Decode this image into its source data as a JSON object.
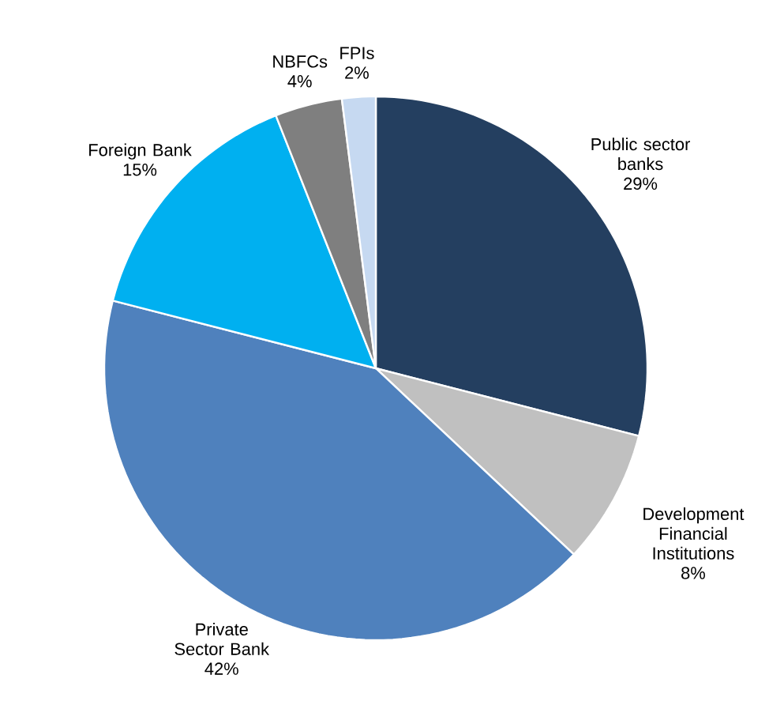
{
  "chart_data": {
    "type": "pie",
    "categories": [
      "Public sector banks",
      "Development Financial Institutions",
      "Private Sector Bank",
      "Foreign Bank",
      "NBFCs",
      "FPIs"
    ],
    "values": [
      29,
      8,
      42,
      15,
      4,
      2
    ],
    "value_labels": [
      "29%",
      "8%",
      "42%",
      "15%",
      "4%",
      "2%"
    ],
    "colors": [
      "#243f60",
      "#c0c0c0",
      "#4f81bd",
      "#00b0f0",
      "#7f7f7f",
      "#c6d9f1"
    ]
  }
}
